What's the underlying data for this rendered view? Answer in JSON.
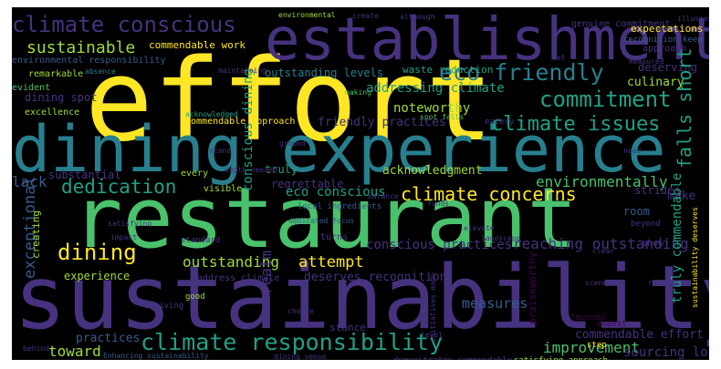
{
  "background": "#000000",
  "colors": {
    "yellow": "#fde725",
    "lime": "#a0da39",
    "green": "#4ac16d",
    "teal": "#1fa187",
    "blue": "#277f8e",
    "steel": "#365c8d",
    "indigo": "#46327e",
    "purple": "#440154"
  },
  "words": [
    {
      "text": "effort",
      "color": "yellow"
    },
    {
      "text": "establishment",
      "color": "indigo"
    },
    {
      "text": "dining experience",
      "color": "blue"
    },
    {
      "text": "restaurant",
      "color": "green"
    },
    {
      "text": "sustainability",
      "color": "indigo"
    },
    {
      "text": "climate conscious",
      "color": "indigo"
    },
    {
      "text": "sustainable",
      "color": "lime"
    },
    {
      "text": "commendable work",
      "color": "yellow"
    },
    {
      "text": "environmental responsibility",
      "color": "steel"
    },
    {
      "text": "absence",
      "color": "blue"
    },
    {
      "text": "remarkable",
      "color": "lime"
    },
    {
      "text": "evident",
      "color": "green"
    },
    {
      "text": "dining spot",
      "color": "indigo"
    },
    {
      "text": "excellence",
      "color": "lime"
    },
    {
      "text": "eco friendly",
      "color": "blue"
    },
    {
      "text": "outstanding levels",
      "color": "blue"
    },
    {
      "text": "waste reduction",
      "color": "teal"
    },
    {
      "text": "addressing climate",
      "color": "teal"
    },
    {
      "text": "commitment",
      "color": "teal"
    },
    {
      "text": "culinary",
      "color": "lime"
    },
    {
      "text": "noteworthy",
      "color": "lime"
    },
    {
      "text": "friendly practices",
      "color": "indigo"
    },
    {
      "text": "climate issues",
      "color": "teal"
    },
    {
      "text": "commendable approach",
      "color": "yellow"
    },
    {
      "text": "genuine commitment",
      "color": "indigo"
    },
    {
      "text": "expectations",
      "color": "yellow"
    },
    {
      "text": "recognition keep",
      "color": "steel"
    },
    {
      "text": "approach",
      "color": "indigo"
    },
    {
      "text": "deserving",
      "color": "indigo"
    },
    {
      "text": "making",
      "color": "green"
    },
    {
      "text": "eatery",
      "color": "indigo"
    },
    {
      "text": "spot falls",
      "color": "green"
    },
    {
      "text": "dedication",
      "color": "teal"
    },
    {
      "text": "lack",
      "color": "steel"
    },
    {
      "text": "substantial",
      "color": "indigo"
    },
    {
      "text": "truly",
      "color": "teal"
    },
    {
      "text": "acknowledgment",
      "color": "lime"
    },
    {
      "text": "environmentally",
      "color": "green"
    },
    {
      "text": "regrettable",
      "color": "indigo"
    },
    {
      "text": "conscious dining",
      "color": "teal"
    },
    {
      "text": "eco conscious",
      "color": "teal"
    },
    {
      "text": "climate concerns",
      "color": "yellow"
    },
    {
      "text": "falls short",
      "color": "teal"
    },
    {
      "text": "make",
      "color": "indigo"
    },
    {
      "text": "local ingredients",
      "color": "steel"
    },
    {
      "text": "exceptional",
      "color": "steel"
    },
    {
      "text": "dining",
      "color": "yellow"
    },
    {
      "text": "outstanding",
      "color": "lime"
    },
    {
      "text": "realm",
      "color": "indigo"
    },
    {
      "text": "attempt",
      "color": "yellow"
    },
    {
      "text": "conscious practices",
      "color": "indigo"
    },
    {
      "text": "reaching outstanding",
      "color": "indigo"
    },
    {
      "text": "truly commendable",
      "color": "teal"
    },
    {
      "text": "measures",
      "color": "steel"
    },
    {
      "text": "deserves recognition",
      "color": "indigo"
    },
    {
      "text": "experience",
      "color": "lime"
    },
    {
      "text": "address climate",
      "color": "indigo"
    },
    {
      "text": "climate responsibility",
      "color": "teal"
    },
    {
      "text": "commendable effort",
      "color": "indigo"
    },
    {
      "text": "improvement",
      "color": "green"
    },
    {
      "text": "practices",
      "color": "steel"
    },
    {
      "text": "toward",
      "color": "lime"
    },
    {
      "text": "sourcing local",
      "color": "indigo"
    },
    {
      "text": "step",
      "color": "yellow"
    },
    {
      "text": "demonstrates commendable",
      "color": "indigo"
    },
    {
      "text": "Enhancing sustainability",
      "color": "steel"
    },
    {
      "text": "satisfying approach",
      "color": "lime"
    },
    {
      "text": "sustainability deserves",
      "color": "yellow"
    },
    {
      "text": "stance",
      "color": "indigo"
    },
    {
      "text": "good",
      "color": "lime"
    },
    {
      "text": "striving",
      "color": "indigo"
    },
    {
      "text": "standard",
      "color": "indigo"
    },
    {
      "text": "creating",
      "color": "lime"
    },
    {
      "text": "every",
      "color": "lime"
    },
    {
      "text": "visible",
      "color": "lime"
    },
    {
      "text": "room",
      "color": "steel"
    },
    {
      "text": "strides",
      "color": "indigo"
    },
    {
      "text": "beyond",
      "color": "indigo"
    },
    {
      "text": "turns",
      "color": "indigo"
    },
    {
      "text": "modest",
      "color": "purple"
    },
    {
      "text": "journey",
      "color": "purple"
    },
    {
      "text": "praiseworthy",
      "color": "purple"
    },
    {
      "text": "environmental",
      "color": "lime"
    },
    {
      "text": "illusion",
      "color": "indigo"
    },
    {
      "text": "dedicated focus",
      "color": "steel"
    },
    {
      "text": "satisfying",
      "color": "indigo"
    },
    {
      "text": "impact",
      "color": "indigo"
    },
    {
      "text": "depth needed",
      "color": "indigo"
    },
    {
      "text": "acknowledged",
      "color": "teal"
    },
    {
      "text": "level",
      "color": "indigo"
    },
    {
      "text": "choice",
      "color": "indigo"
    },
    {
      "text": "elevate",
      "color": "indigo"
    },
    {
      "text": "landscape",
      "color": "indigo"
    },
    {
      "text": "clear",
      "color": "indigo"
    },
    {
      "text": "show",
      "color": "indigo"
    },
    {
      "text": "funds",
      "color": "indigo"
    },
    {
      "text": "create",
      "color": "indigo"
    },
    {
      "text": "although",
      "color": "indigo"
    },
    {
      "text": "set",
      "color": "indigo"
    },
    {
      "text": "measured",
      "color": "indigo"
    },
    {
      "text": "behind",
      "color": "indigo"
    },
    {
      "text": "dining venue",
      "color": "indigo"
    },
    {
      "text": "initiatives made",
      "color": "indigo"
    },
    {
      "text": "scene",
      "color": "indigo"
    },
    {
      "text": "reality",
      "color": "indigo"
    },
    {
      "text": "need",
      "color": "indigo"
    },
    {
      "text": "stand",
      "color": "indigo"
    },
    {
      "text": "ground",
      "color": "indigo"
    },
    {
      "text": "balance",
      "color": "indigo"
    },
    {
      "text": "maintaining",
      "color": "indigo"
    }
  ]
}
